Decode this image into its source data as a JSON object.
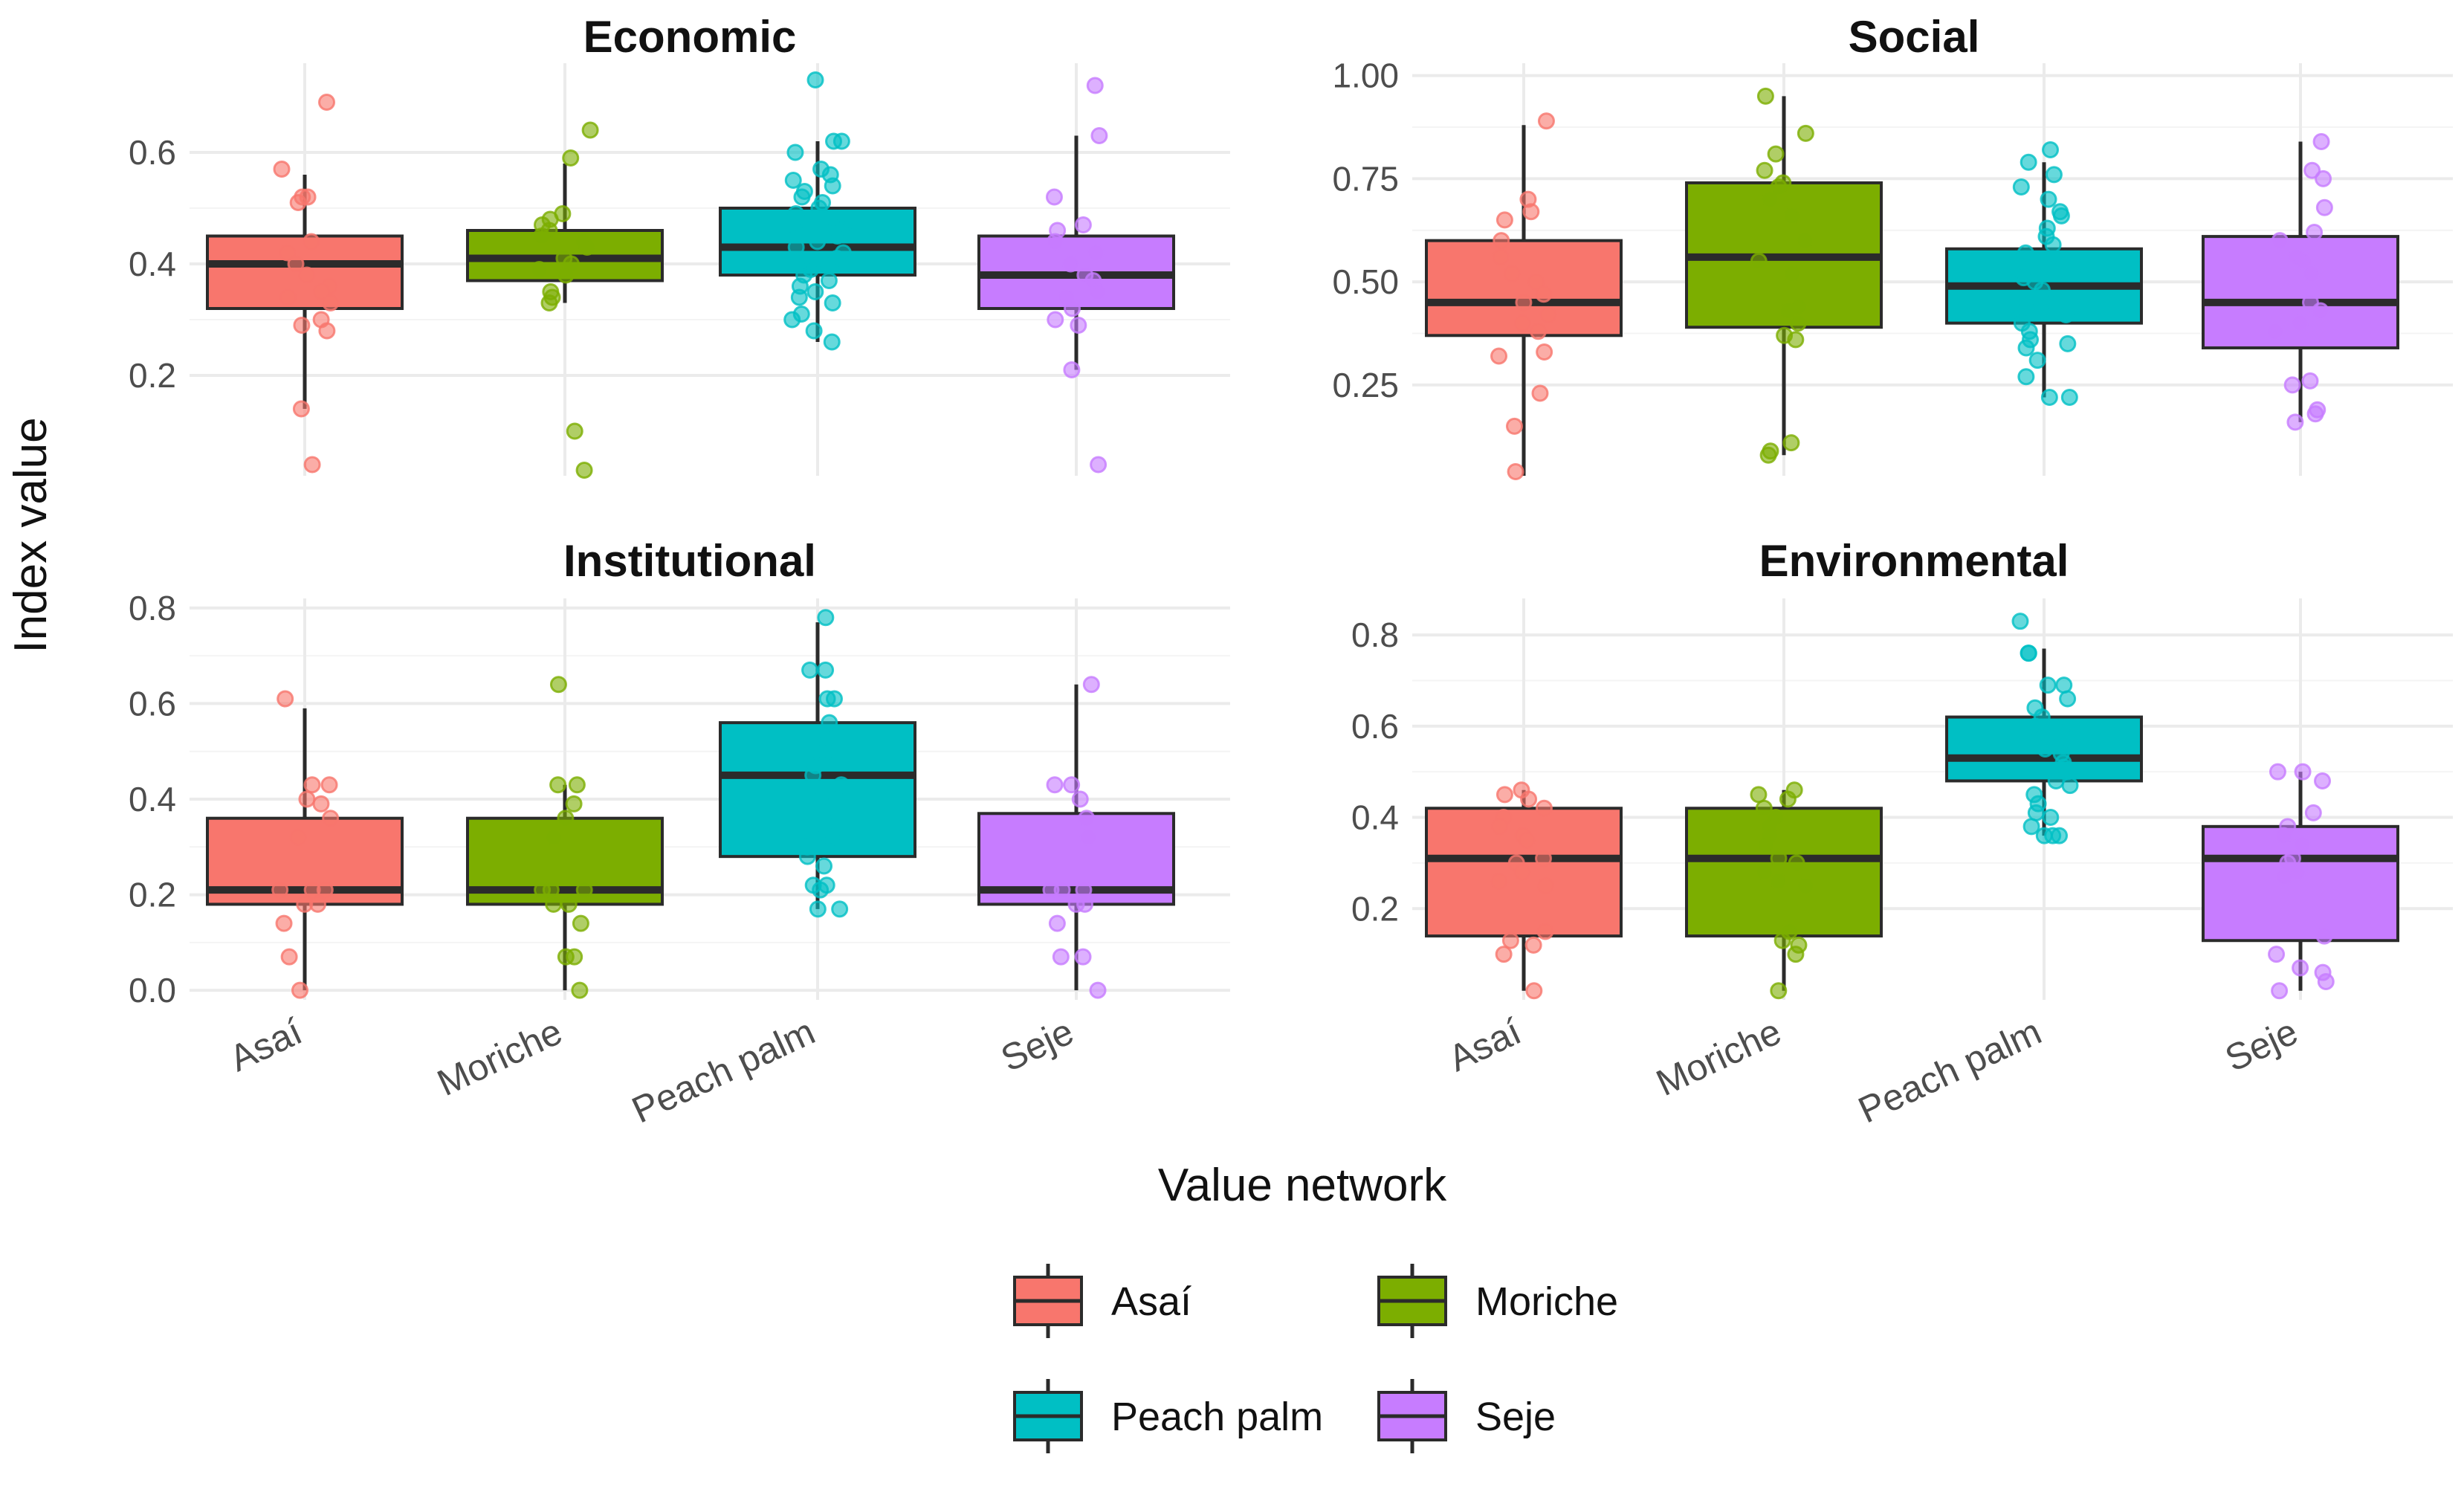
{
  "chart_data": {
    "type": "boxplot",
    "xlabel": "Value network",
    "ylabel": "Index value",
    "categories": [
      "Asaí",
      "Moriche",
      "Peach palm",
      "Seje"
    ],
    "colors": [
      "#f8766d",
      "#7cae00",
      "#00bfc4",
      "#c77cff"
    ],
    "legend": {
      "position": "bottom",
      "entries": [
        "Asaí",
        "Moriche",
        "Peach palm",
        "Seje"
      ]
    },
    "panels": [
      {
        "title": "Economic",
        "ylim": [
          0.02,
          0.76
        ],
        "yticks": [
          0.2,
          0.4,
          0.6
        ],
        "ytick_labels": [
          "0.2",
          "0.4",
          "0.6"
        ],
        "boxes": [
          {
            "category": "Asaí",
            "lower": 0.14,
            "q1": 0.32,
            "median": 0.4,
            "q3": 0.45,
            "upper": 0.56
          },
          {
            "category": "Moriche",
            "lower": 0.33,
            "q1": 0.37,
            "median": 0.41,
            "q3": 0.46,
            "upper": 0.58
          },
          {
            "category": "Peach palm",
            "lower": 0.26,
            "q1": 0.38,
            "median": 0.43,
            "q3": 0.5,
            "upper": 0.62
          },
          {
            "category": "Seje",
            "lower": 0.21,
            "q1": 0.32,
            "median": 0.38,
            "q3": 0.45,
            "upper": 0.63
          }
        ],
        "points": [
          [
            0.69,
            0.57,
            0.52,
            0.51,
            0.52,
            0.44,
            0.42,
            0.4,
            0.38,
            0.36,
            0.35,
            0.34,
            0.33,
            0.3,
            0.29,
            0.28,
            0.14,
            0.04
          ],
          [
            0.64,
            0.59,
            0.49,
            0.48,
            0.47,
            0.46,
            0.45,
            0.44,
            0.43,
            0.41,
            0.4,
            0.39,
            0.38,
            0.35,
            0.34,
            0.33,
            0.1,
            0.03
          ],
          [
            0.73,
            0.62,
            0.62,
            0.6,
            0.57,
            0.56,
            0.55,
            0.54,
            0.53,
            0.52,
            0.51,
            0.5,
            0.49,
            0.48,
            0.47,
            0.46,
            0.45,
            0.44,
            0.43,
            0.42,
            0.41,
            0.4,
            0.39,
            0.38,
            0.37,
            0.36,
            0.35,
            0.34,
            0.33,
            0.31,
            0.3,
            0.28,
            0.26
          ],
          [
            0.72,
            0.63,
            0.52,
            0.47,
            0.46,
            0.44,
            0.42,
            0.4,
            0.38,
            0.37,
            0.35,
            0.34,
            0.32,
            0.3,
            0.29,
            0.21,
            0.04
          ]
        ]
      },
      {
        "title": "Social",
        "ylim": [
          0.03,
          1.03
        ],
        "yticks": [
          0.25,
          0.5,
          0.75,
          1.0
        ],
        "ytick_labels": [
          "0.25",
          "0.50",
          "0.75",
          "1.00"
        ],
        "boxes": [
          {
            "category": "Asaí",
            "lower": 0.03,
            "q1": 0.37,
            "median": 0.45,
            "q3": 0.6,
            "upper": 0.88
          },
          {
            "category": "Moriche",
            "lower": 0.08,
            "q1": 0.39,
            "median": 0.56,
            "q3": 0.74,
            "upper": 0.95
          },
          {
            "category": "Peach palm",
            "lower": 0.22,
            "q1": 0.4,
            "median": 0.49,
            "q3": 0.58,
            "upper": 0.79
          },
          {
            "category": "Seje",
            "lower": 0.16,
            "q1": 0.34,
            "median": 0.45,
            "q3": 0.61,
            "upper": 0.84
          }
        ],
        "points": [
          [
            0.89,
            0.7,
            0.67,
            0.65,
            0.6,
            0.56,
            0.52,
            0.5,
            0.47,
            0.45,
            0.42,
            0.4,
            0.38,
            0.33,
            0.32,
            0.23,
            0.15,
            0.04
          ],
          [
            0.95,
            0.86,
            0.81,
            0.77,
            0.74,
            0.73,
            0.7,
            0.66,
            0.6,
            0.55,
            0.52,
            0.44,
            0.43,
            0.4,
            0.37,
            0.36,
            0.11,
            0.09,
            0.08
          ],
          [
            0.82,
            0.79,
            0.76,
            0.73,
            0.7,
            0.67,
            0.66,
            0.63,
            0.61,
            0.59,
            0.57,
            0.55,
            0.53,
            0.51,
            0.5,
            0.48,
            0.46,
            0.45,
            0.43,
            0.42,
            0.4,
            0.38,
            0.36,
            0.35,
            0.34,
            0.31,
            0.27,
            0.22,
            0.22
          ],
          [
            0.84,
            0.77,
            0.75,
            0.68,
            0.62,
            0.6,
            0.56,
            0.55,
            0.52,
            0.45,
            0.43,
            0.4,
            0.38,
            0.26,
            0.25,
            0.19,
            0.18,
            0.16
          ]
        ]
      },
      {
        "title": "Institutional",
        "ylim": [
          -0.02,
          0.82
        ],
        "yticks": [
          0.0,
          0.2,
          0.4,
          0.6,
          0.8
        ],
        "ytick_labels": [
          "0.0",
          "0.2",
          "0.4",
          "0.6",
          "0.8"
        ],
        "boxes": [
          {
            "category": "Asaí",
            "lower": 0.0,
            "q1": 0.18,
            "median": 0.21,
            "q3": 0.36,
            "upper": 0.59
          },
          {
            "category": "Moriche",
            "lower": 0.0,
            "q1": 0.18,
            "median": 0.21,
            "q3": 0.36,
            "upper": 0.43
          },
          {
            "category": "Peach palm",
            "lower": 0.17,
            "q1": 0.28,
            "median": 0.45,
            "q3": 0.56,
            "upper": 0.77
          },
          {
            "category": "Seje",
            "lower": 0.0,
            "q1": 0.18,
            "median": 0.21,
            "q3": 0.37,
            "upper": 0.64
          }
        ],
        "points": [
          [
            0.61,
            0.43,
            0.43,
            0.4,
            0.39,
            0.36,
            0.32,
            0.21,
            0.21,
            0.21,
            0.18,
            0.18,
            0.14,
            0.07,
            0.0
          ],
          [
            0.64,
            0.43,
            0.43,
            0.39,
            0.36,
            0.32,
            0.21,
            0.21,
            0.21,
            0.18,
            0.18,
            0.14,
            0.07,
            0.07,
            0.0
          ],
          [
            0.78,
            0.67,
            0.67,
            0.61,
            0.61,
            0.56,
            0.53,
            0.5,
            0.47,
            0.45,
            0.43,
            0.4,
            0.36,
            0.33,
            0.32,
            0.3,
            0.28,
            0.26,
            0.22,
            0.22,
            0.21,
            0.17,
            0.17
          ],
          [
            0.64,
            0.43,
            0.43,
            0.4,
            0.36,
            0.32,
            0.21,
            0.21,
            0.21,
            0.18,
            0.18,
            0.14,
            0.07,
            0.07,
            0.0
          ]
        ]
      },
      {
        "title": "Environmental",
        "ylim": [
          0.0,
          0.88
        ],
        "yticks": [
          0.2,
          0.4,
          0.6,
          0.8
        ],
        "ytick_labels": [
          "0.2",
          "0.4",
          "0.6",
          "0.8"
        ],
        "boxes": [
          {
            "category": "Asaí",
            "lower": 0.02,
            "q1": 0.14,
            "median": 0.31,
            "q3": 0.42,
            "upper": 0.46
          },
          {
            "category": "Moriche",
            "lower": 0.02,
            "q1": 0.14,
            "median": 0.31,
            "q3": 0.42,
            "upper": 0.46
          },
          {
            "category": "Peach palm",
            "lower": 0.36,
            "q1": 0.48,
            "median": 0.53,
            "q3": 0.62,
            "upper": 0.77
          },
          {
            "category": "Seje",
            "lower": 0.02,
            "q1": 0.13,
            "median": 0.31,
            "q3": 0.38,
            "upper": 0.5
          }
        ],
        "points": [
          [
            0.46,
            0.45,
            0.44,
            0.42,
            0.4,
            0.38,
            0.36,
            0.35,
            0.31,
            0.3,
            0.28,
            0.26,
            0.25,
            0.15,
            0.13,
            0.12,
            0.1,
            0.02
          ],
          [
            0.46,
            0.45,
            0.44,
            0.42,
            0.4,
            0.38,
            0.36,
            0.34,
            0.31,
            0.3,
            0.28,
            0.26,
            0.25,
            0.15,
            0.13,
            0.12,
            0.1,
            0.02
          ],
          [
            0.83,
            0.76,
            0.76,
            0.69,
            0.69,
            0.66,
            0.64,
            0.62,
            0.6,
            0.59,
            0.57,
            0.55,
            0.54,
            0.52,
            0.51,
            0.5,
            0.48,
            0.47,
            0.45,
            0.43,
            0.41,
            0.4,
            0.38,
            0.36,
            0.36,
            0.36
          ],
          [
            0.5,
            0.5,
            0.48,
            0.41,
            0.38,
            0.36,
            0.34,
            0.31,
            0.3,
            0.28,
            0.27,
            0.14,
            0.1,
            0.07,
            0.06,
            0.04,
            0.02
          ]
        ]
      }
    ]
  }
}
